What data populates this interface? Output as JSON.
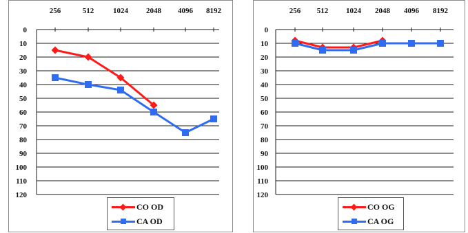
{
  "colors": {
    "co": "#ff1a1a",
    "ca": "#2f6cf2"
  },
  "chart_data": [
    {
      "type": "line",
      "x": [
        256,
        512,
        1024,
        2048,
        4096,
        8192
      ],
      "x_tick_labels": [
        "256",
        "512",
        "1024",
        "2048",
        "4096",
        "8192"
      ],
      "y_tick_labels": [
        "0",
        "10",
        "20",
        "30",
        "40",
        "50",
        "60",
        "70",
        "80",
        "90",
        "100",
        "110",
        "120"
      ],
      "ylim": [
        0,
        120
      ],
      "y_inverted": true,
      "x_axis_position": "top",
      "grid": true,
      "legend_position": "bottom",
      "series": [
        {
          "name": "CO OD",
          "color_key": "co",
          "marker": "diamond",
          "values": [
            15,
            20,
            35,
            55,
            null,
            null
          ]
        },
        {
          "name": "CA OD",
          "color_key": "ca",
          "marker": "square",
          "values": [
            35,
            40,
            44,
            60,
            75,
            65
          ]
        }
      ]
    },
    {
      "type": "line",
      "x": [
        256,
        512,
        1024,
        2048,
        4096,
        8192
      ],
      "x_tick_labels": [
        "256",
        "512",
        "1024",
        "2048",
        "4096",
        "8192"
      ],
      "y_tick_labels": [
        "0",
        "10",
        "20",
        "30",
        "40",
        "50",
        "60",
        "70",
        "80",
        "90",
        "100",
        "110",
        "120"
      ],
      "ylim": [
        0,
        120
      ],
      "y_inverted": true,
      "x_axis_position": "top",
      "grid": true,
      "legend_position": "bottom",
      "series": [
        {
          "name": "CO OG",
          "color_key": "co",
          "marker": "diamond",
          "values": [
            8,
            13,
            13,
            8,
            null,
            null
          ]
        },
        {
          "name": "CA OG",
          "color_key": "ca",
          "marker": "square",
          "values": [
            10,
            15,
            15,
            10,
            10,
            10
          ]
        }
      ]
    }
  ]
}
